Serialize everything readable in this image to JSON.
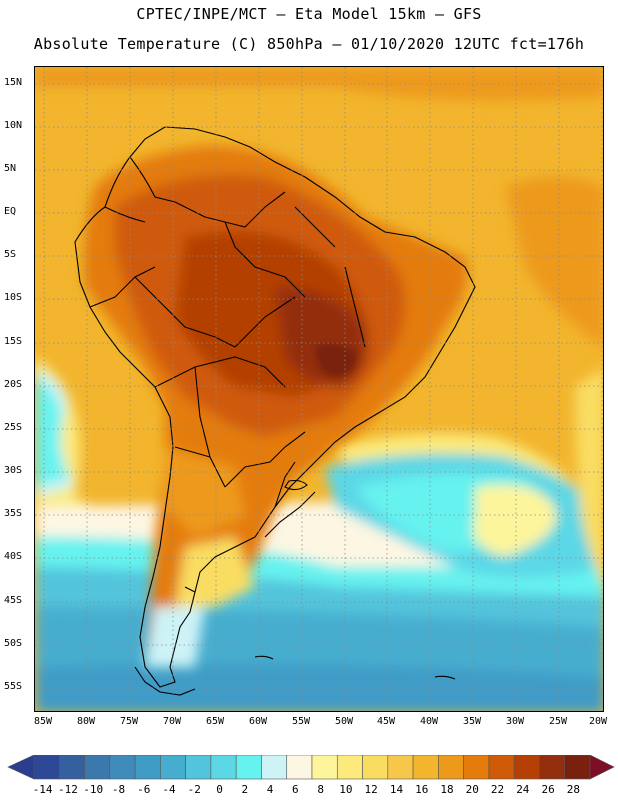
{
  "title_line1": "CPTEC/INPE/MCT –  Eta Model 15km – GFS",
  "title_line2": "Absolute Temperature (C) 850hPa – 01/10/2020 12UTC fct=176h",
  "lat_labels": [
    "15N",
    "10N",
    "5N",
    "EQ",
    "5S",
    "10S",
    "15S",
    "20S",
    "25S",
    "30S",
    "35S",
    "40S",
    "45S",
    "50S",
    "55S"
  ],
  "lon_labels": [
    "85W",
    "80W",
    "75W",
    "70W",
    "65W",
    "60W",
    "55W",
    "50W",
    "45W",
    "40W",
    "35W",
    "30W",
    "25W",
    "20W"
  ],
  "colorbar": {
    "labels": [
      "-14",
      "-12",
      "-10",
      "-8",
      "-6",
      "-4",
      "-2",
      "0",
      "2",
      "4",
      "6",
      "8",
      "10",
      "12",
      "14",
      "16",
      "18",
      "20",
      "22",
      "24",
      "26",
      "28"
    ],
    "colors": [
      "#2c4896",
      "#34609f",
      "#3b78ad",
      "#3f8cbc",
      "#3f9cc6",
      "#47adcf",
      "#52c4dc",
      "#5bd7e6",
      "#66f2ef",
      "#cdf3f7",
      "#fdf6e3",
      "#fdf59c",
      "#fcea7c",
      "#f9dd62",
      "#f6c749",
      "#f2b52d",
      "#ed9a1b",
      "#e47b0a",
      "#cf5a07",
      "#b44006",
      "#932f0c",
      "#7a200f"
    ],
    "min_color": "#2a3d8f",
    "max_color": "#7c0f25"
  }
}
